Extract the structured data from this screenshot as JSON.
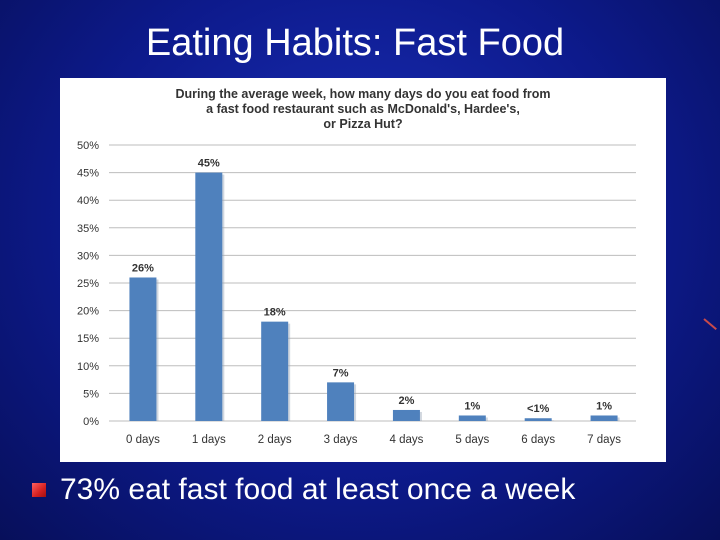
{
  "slide": {
    "title": "Eating Habits: Fast Food",
    "bullet": "73% eat fast food at least once a week"
  },
  "colors": {
    "bar": "#4f81bd",
    "grid": "#bdbdbd",
    "background": "#0d1a8c",
    "bullet": "#d42020"
  },
  "chart_data": {
    "type": "bar",
    "title": "During the average week, how many days do you eat food from a fast food restaurant such as McDonald's, Hardee's, or Pizza Hut?",
    "title_lines": [
      "During the average week, how many days do you eat food from",
      "a fast food restaurant such as McDonald's, Hardee's,",
      "or Pizza Hut?"
    ],
    "categories": [
      "0 days",
      "1 days",
      "2 days",
      "3 days",
      "4 days",
      "5 days",
      "6 days",
      "7 days"
    ],
    "values": [
      26,
      45,
      18,
      7,
      2,
      1,
      0.5,
      1
    ],
    "data_labels": [
      "26%",
      "45%",
      "18%",
      "7%",
      "2%",
      "1%",
      "<1%",
      "1%"
    ],
    "y_ticks": [
      "0%",
      "5%",
      "10%",
      "15%",
      "20%",
      "25%",
      "30%",
      "35%",
      "40%",
      "45%",
      "50%"
    ],
    "ylim": [
      0,
      50
    ],
    "grid": true,
    "legend": "none"
  }
}
